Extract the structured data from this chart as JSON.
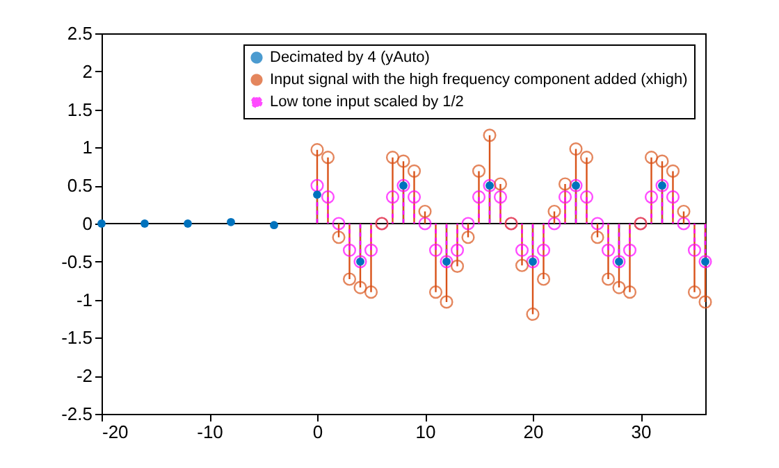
{
  "chart_data": {
    "type": "lollipop",
    "series": [
      {
        "name": "Decimated by 4 (yAuto)",
        "color": "#0072bd",
        "line_style": "solid",
        "x": [
          -20,
          -16,
          -12,
          -8,
          -4,
          0,
          4,
          8,
          12,
          16,
          20,
          24,
          28,
          32,
          36
        ],
        "values": [
          0,
          0,
          0,
          0.02,
          -0.02,
          0.38,
          -0.5,
          0.5,
          -0.5,
          0.5,
          -0.5,
          0.5,
          -0.5,
          0.5,
          -0.5
        ]
      },
      {
        "name": "Input signal with the high frequency component added (xhigh)",
        "color": "#d95319",
        "line_style": "solid",
        "x": [
          0,
          1,
          2,
          3,
          4,
          5,
          6,
          7,
          8,
          9,
          10,
          11,
          12,
          13,
          14,
          15,
          16,
          17,
          18,
          19,
          20,
          21,
          22,
          23,
          24,
          25,
          26,
          27,
          28,
          29,
          30,
          31,
          32,
          33,
          34,
          35,
          36
        ],
        "values": [
          0.97,
          0.87,
          -0.18,
          -0.73,
          -0.84,
          -0.9,
          0,
          0.87,
          0.82,
          0.69,
          0.16,
          -0.9,
          -1.03,
          -0.56,
          -0.18,
          0.69,
          1.16,
          0.52,
          0,
          -0.55,
          -1.19,
          -0.73,
          0.16,
          0.52,
          0.98,
          0.87,
          -0.18,
          -0.73,
          -0.84,
          -0.9,
          0,
          0.87,
          0.82,
          0.69,
          0.16,
          -0.9,
          -1.03
        ]
      },
      {
        "name": "Low tone input scaled by 1/2",
        "color": "#ff00ff",
        "line_style": "dashed",
        "x": [
          0,
          1,
          2,
          3,
          4,
          5,
          6,
          7,
          8,
          9,
          10,
          11,
          12,
          13,
          14,
          15,
          16,
          17,
          18,
          19,
          20,
          21,
          22,
          23,
          24,
          25,
          26,
          27,
          28,
          29,
          30,
          31,
          32,
          33,
          34,
          35,
          36
        ],
        "values": [
          0.5,
          0.35,
          0,
          -0.35,
          -0.5,
          -0.35,
          0,
          0.35,
          0.5,
          0.35,
          0,
          -0.35,
          -0.5,
          -0.35,
          0,
          0.35,
          0.5,
          0.35,
          0,
          -0.35,
          -0.5,
          -0.35,
          0,
          0.35,
          0.5,
          0.35,
          0,
          -0.35,
          -0.5,
          -0.35,
          0,
          0.35,
          0.5,
          0.35,
          0,
          -0.35,
          -0.5
        ]
      }
    ],
    "xlim": [
      -20,
      36
    ],
    "xticks": [
      -20,
      -10,
      0,
      10,
      20,
      30
    ],
    "ylim": [
      -2.5,
      2.5
    ],
    "yticks": [
      -2.5,
      -2,
      -1.5,
      -1,
      -0.5,
      0,
      0.5,
      1,
      1.5,
      2,
      2.5
    ],
    "ref_lines": [
      {
        "axis": "y",
        "value": 0
      }
    ],
    "marker": "circle",
    "grid": false,
    "legend": "top right"
  }
}
